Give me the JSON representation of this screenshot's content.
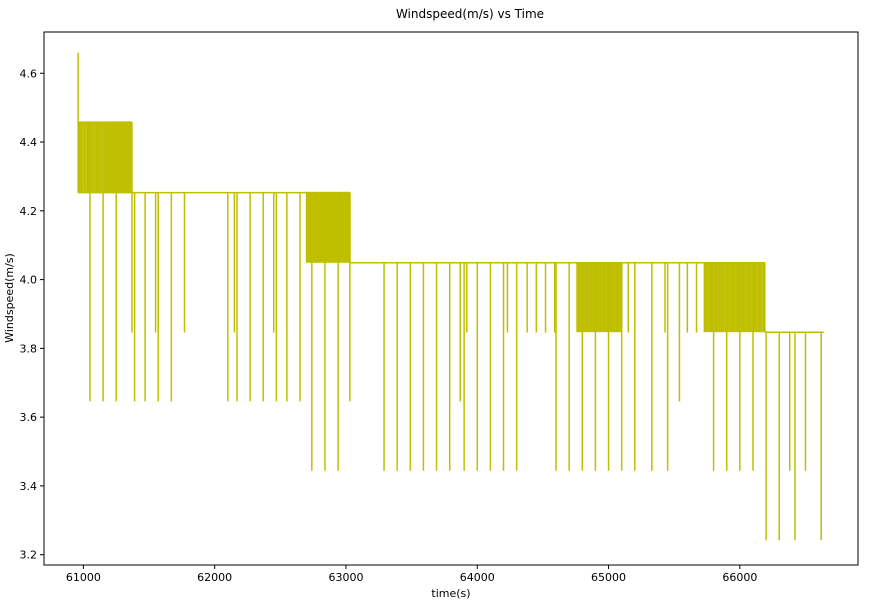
{
  "chart_data": {
    "type": "line",
    "title": "Windspeed(m/s) vs Time",
    "xlabel": "time(s)",
    "ylabel": "Windspeed(m/s)",
    "xlim": [
      60700,
      66900
    ],
    "ylim": [
      3.17,
      4.72
    ],
    "xticks": [
      61000,
      62000,
      63000,
      64000,
      65000,
      66000
    ],
    "xtick_labels": [
      "61000",
      "62000",
      "63000",
      "64000",
      "65000",
      "66000"
    ],
    "yticks": [
      3.2,
      3.4,
      3.6,
      3.8,
      4.0,
      4.2,
      4.4,
      4.6
    ],
    "ytick_labels": [
      "3.2",
      "3.4",
      "3.6",
      "3.8",
      "4.0",
      "4.2",
      "4.4",
      "4.6"
    ],
    "grid": false,
    "color": "#bfbf00",
    "series": [
      {
        "name": "",
        "segments": [
          {
            "x_start": 60960,
            "x_end": 61370,
            "value": 4.253
          },
          {
            "x_start": 61370,
            "x_end": 63030,
            "value": 4.253
          },
          {
            "x_start": 63030,
            "x_end": 66190,
            "value": 4.049
          },
          {
            "x_start": 66190,
            "x_end": 66640,
            "value": 3.847
          }
        ],
        "oscillation_bands": [
          {
            "x_start": 60965,
            "x_end": 61160,
            "low": 4.253,
            "high": 4.458,
            "count": 18
          },
          {
            "x_start": 61160,
            "x_end": 61370,
            "low": 4.253,
            "high": 4.458,
            "count": 22
          },
          {
            "x_start": 62700,
            "x_end": 63030,
            "low": 4.049,
            "high": 4.253,
            "count": 40
          },
          {
            "x_start": 64760,
            "x_end": 65100,
            "low": 3.847,
            "high": 4.049,
            "count": 34
          },
          {
            "x_start": 65730,
            "x_end": 66190,
            "low": 3.847,
            "high": 4.049,
            "count": 44
          }
        ],
        "peaks": [
          {
            "x": 60960,
            "value": 4.66
          }
        ],
        "dips": [
          {
            "x": 61050,
            "value": 3.646
          },
          {
            "x": 61150,
            "value": 3.646
          },
          {
            "x": 61250,
            "value": 3.646
          },
          {
            "x": 61370,
            "value": 3.846
          },
          {
            "x": 61390,
            "value": 3.646
          },
          {
            "x": 61470,
            "value": 3.646
          },
          {
            "x": 61550,
            "value": 3.846
          },
          {
            "x": 61570,
            "value": 3.646
          },
          {
            "x": 61670,
            "value": 3.646
          },
          {
            "x": 61770,
            "value": 3.846
          },
          {
            "x": 62100,
            "value": 3.646
          },
          {
            "x": 62150,
            "value": 3.846
          },
          {
            "x": 62170,
            "value": 3.646
          },
          {
            "x": 62270,
            "value": 3.646
          },
          {
            "x": 62370,
            "value": 3.646
          },
          {
            "x": 62450,
            "value": 3.846
          },
          {
            "x": 62470,
            "value": 3.646
          },
          {
            "x": 62550,
            "value": 3.646
          },
          {
            "x": 62650,
            "value": 3.646
          },
          {
            "x": 62740,
            "value": 3.444
          },
          {
            "x": 62840,
            "value": 3.444
          },
          {
            "x": 62940,
            "value": 3.444
          },
          {
            "x": 63030,
            "value": 3.646
          },
          {
            "x": 63290,
            "value": 3.444
          },
          {
            "x": 63390,
            "value": 3.444
          },
          {
            "x": 63490,
            "value": 3.444
          },
          {
            "x": 63590,
            "value": 3.444
          },
          {
            "x": 63690,
            "value": 3.444
          },
          {
            "x": 63790,
            "value": 3.444
          },
          {
            "x": 63870,
            "value": 3.646
          },
          {
            "x": 63900,
            "value": 3.444
          },
          {
            "x": 63920,
            "value": 3.846
          },
          {
            "x": 64000,
            "value": 3.444
          },
          {
            "x": 64100,
            "value": 3.444
          },
          {
            "x": 64200,
            "value": 3.444
          },
          {
            "x": 64230,
            "value": 3.846
          },
          {
            "x": 64300,
            "value": 3.444
          },
          {
            "x": 64380,
            "value": 3.846
          },
          {
            "x": 64450,
            "value": 3.846
          },
          {
            "x": 64520,
            "value": 3.846
          },
          {
            "x": 64590,
            "value": 3.846
          },
          {
            "x": 64600,
            "value": 3.444
          },
          {
            "x": 64700,
            "value": 3.444
          },
          {
            "x": 64800,
            "value": 3.444
          },
          {
            "x": 64900,
            "value": 3.444
          },
          {
            "x": 65000,
            "value": 3.444
          },
          {
            "x": 65100,
            "value": 3.444
          },
          {
            "x": 65150,
            "value": 3.846
          },
          {
            "x": 65200,
            "value": 3.444
          },
          {
            "x": 65330,
            "value": 3.444
          },
          {
            "x": 65430,
            "value": 3.846
          },
          {
            "x": 65450,
            "value": 3.444
          },
          {
            "x": 65540,
            "value": 3.646
          },
          {
            "x": 65600,
            "value": 3.846
          },
          {
            "x": 65670,
            "value": 3.846
          },
          {
            "x": 65800,
            "value": 3.444
          },
          {
            "x": 65900,
            "value": 3.444
          },
          {
            "x": 66000,
            "value": 3.444
          },
          {
            "x": 66100,
            "value": 3.444
          },
          {
            "x": 66200,
            "value": 3.242
          },
          {
            "x": 66300,
            "value": 3.242
          },
          {
            "x": 66380,
            "value": 3.444
          },
          {
            "x": 66420,
            "value": 3.242
          },
          {
            "x": 66500,
            "value": 3.444
          },
          {
            "x": 66620,
            "value": 3.242
          }
        ]
      }
    ]
  }
}
